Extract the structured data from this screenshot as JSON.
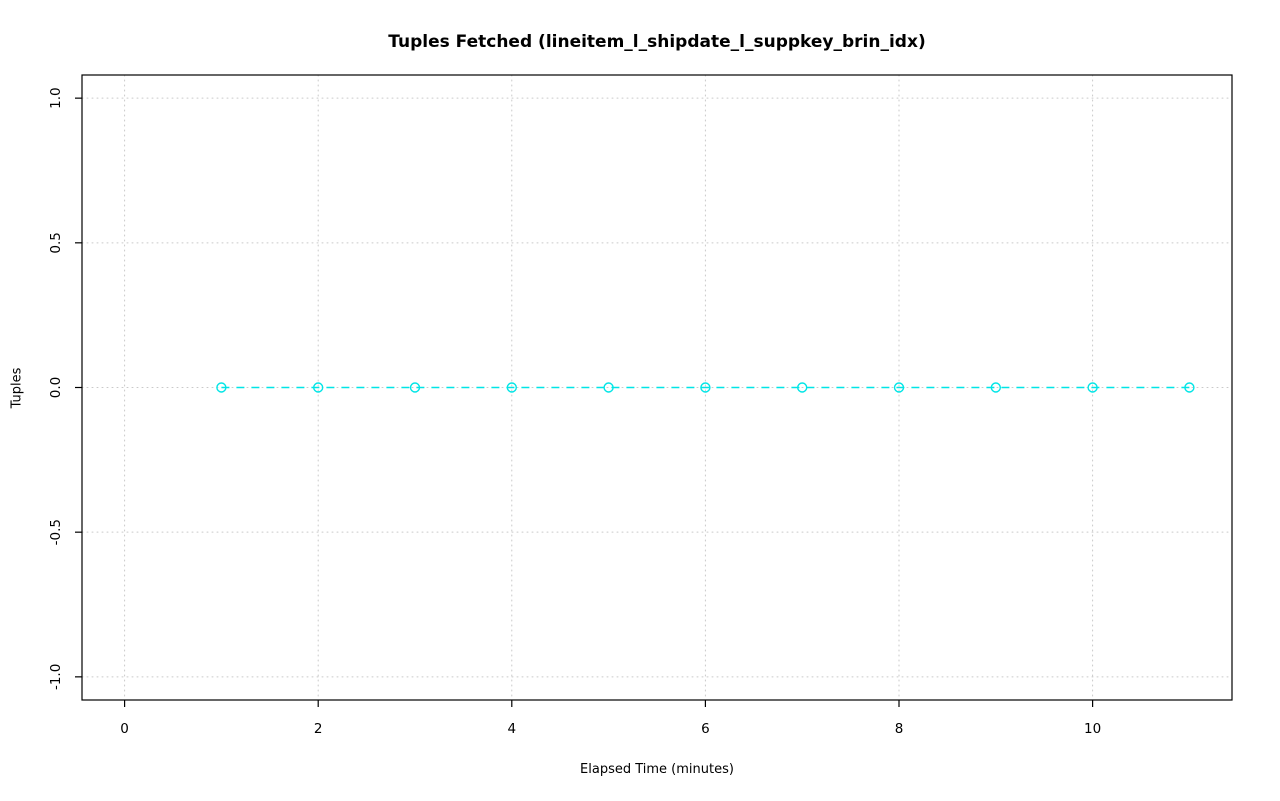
{
  "chart_data": {
    "type": "line",
    "title": "Tuples Fetched (lineitem_l_shipdate_l_suppkey_brin_idx)",
    "xlabel": "Elapsed Time (minutes)",
    "ylabel": "Tuples",
    "x": [
      1,
      2,
      3,
      4,
      5,
      6,
      7,
      8,
      9,
      10,
      11
    ],
    "values": [
      0,
      0,
      0,
      0,
      0,
      0,
      0,
      0,
      0,
      0,
      0
    ],
    "xlim": [
      -0.44,
      11.44
    ],
    "ylim": [
      -1.08,
      1.08
    ],
    "x_ticks": [
      0,
      2,
      4,
      6,
      8,
      10
    ],
    "x_tick_labels": [
      "0",
      "2",
      "4",
      "6",
      "8",
      "10"
    ],
    "y_ticks": [
      -1.0,
      -0.5,
      0.0,
      0.5,
      1.0
    ],
    "y_tick_labels": [
      "-1.0",
      "-0.5",
      "0.0",
      "0.5",
      "1.0"
    ],
    "grid": true,
    "legend": "none",
    "series_color": "#00e5e6",
    "grid_color": "#c9c9c9",
    "axis_color": "#000000",
    "point_style": "open-circle",
    "line_style": "dashed"
  }
}
